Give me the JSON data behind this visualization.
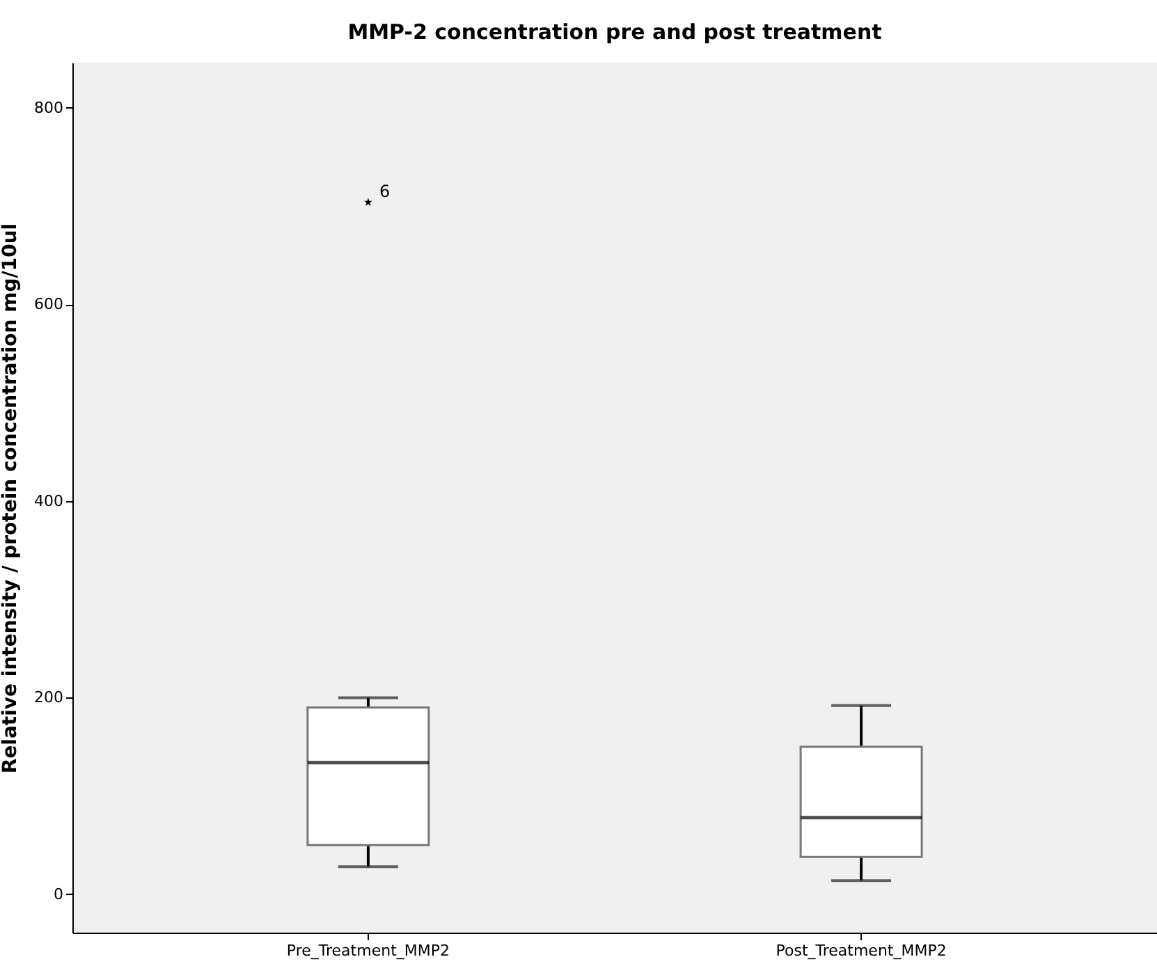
{
  "chart_data": {
    "type": "box",
    "title": "MMP-2 concentration pre and post treatment",
    "ylabel": "Relative intensity / protein concentration mg/10ul",
    "categories": [
      "Pre_Treatment_MMP2",
      "Post_Treatment_MMP2"
    ],
    "boxes": [
      {
        "low": 28,
        "q1": 50,
        "median": 134,
        "q3": 190,
        "high": 200,
        "outliers": [
          704
        ]
      },
      {
        "low": 14,
        "q1": 38,
        "median": 78,
        "q3": 150,
        "high": 192
      }
    ],
    "ylim": [
      -39,
      846
    ],
    "yticks": [
      0,
      200,
      400,
      600,
      800
    ],
    "annotations": [
      "6"
    ]
  }
}
